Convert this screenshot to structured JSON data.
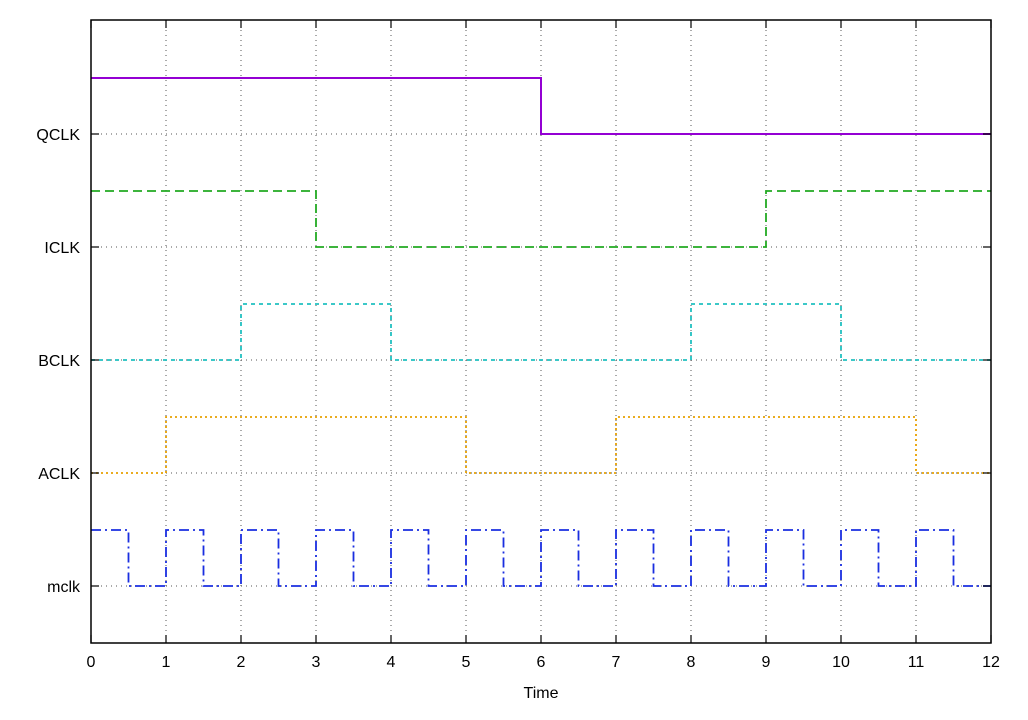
{
  "chart_data": {
    "type": "line",
    "title": "",
    "xlabel": "Time",
    "ylabel": "",
    "xlim": [
      0,
      12
    ],
    "grid": true,
    "legend": "none",
    "x_ticks": [
      "0",
      "1",
      "2",
      "3",
      "4",
      "5",
      "6",
      "7",
      "8",
      "9",
      "10",
      "11",
      "12"
    ],
    "y_ticks": [
      "mclk",
      "ACLK",
      "BCLK",
      "ICLK",
      "QCLK"
    ],
    "series": [
      {
        "name": "QCLK",
        "color": "#9400d3",
        "style": "solid",
        "step_points": [
          [
            0,
            1
          ],
          [
            6,
            0
          ],
          [
            12,
            0
          ]
        ]
      },
      {
        "name": "ICLK",
        "color": "#22aa22",
        "style": "dashed",
        "step_points": [
          [
            0,
            1
          ],
          [
            3,
            0
          ],
          [
            9,
            1
          ],
          [
            12,
            1
          ]
        ]
      },
      {
        "name": "BCLK",
        "color": "#20c0c0",
        "style": "short-dashed",
        "step_points": [
          [
            0,
            0
          ],
          [
            2,
            1
          ],
          [
            4,
            0
          ],
          [
            8,
            1
          ],
          [
            10,
            0
          ],
          [
            12,
            0
          ]
        ]
      },
      {
        "name": "ACLK",
        "color": "#e8a000",
        "style": "dotted",
        "step_points": [
          [
            0,
            0
          ],
          [
            1,
            1
          ],
          [
            5,
            0
          ],
          [
            7,
            1
          ],
          [
            11,
            0
          ],
          [
            12,
            0
          ]
        ]
      },
      {
        "name": "mclk",
        "color": "#1a2ee0",
        "style": "dash-dot",
        "step_points": [
          [
            0,
            1
          ],
          [
            0.5,
            0
          ],
          [
            1,
            1
          ],
          [
            1.5,
            0
          ],
          [
            2,
            1
          ],
          [
            2.5,
            0
          ],
          [
            3,
            1
          ],
          [
            3.5,
            0
          ],
          [
            4,
            1
          ],
          [
            4.5,
            0
          ],
          [
            5,
            1
          ],
          [
            5.5,
            0
          ],
          [
            6,
            1
          ],
          [
            6.5,
            0
          ],
          [
            7,
            1
          ],
          [
            7.5,
            0
          ],
          [
            8,
            1
          ],
          [
            8.5,
            0
          ],
          [
            9,
            1
          ],
          [
            9.5,
            0
          ],
          [
            10,
            1
          ],
          [
            10.5,
            0
          ],
          [
            11,
            1
          ],
          [
            11.5,
            0
          ],
          [
            12,
            0
          ]
        ]
      }
    ]
  }
}
